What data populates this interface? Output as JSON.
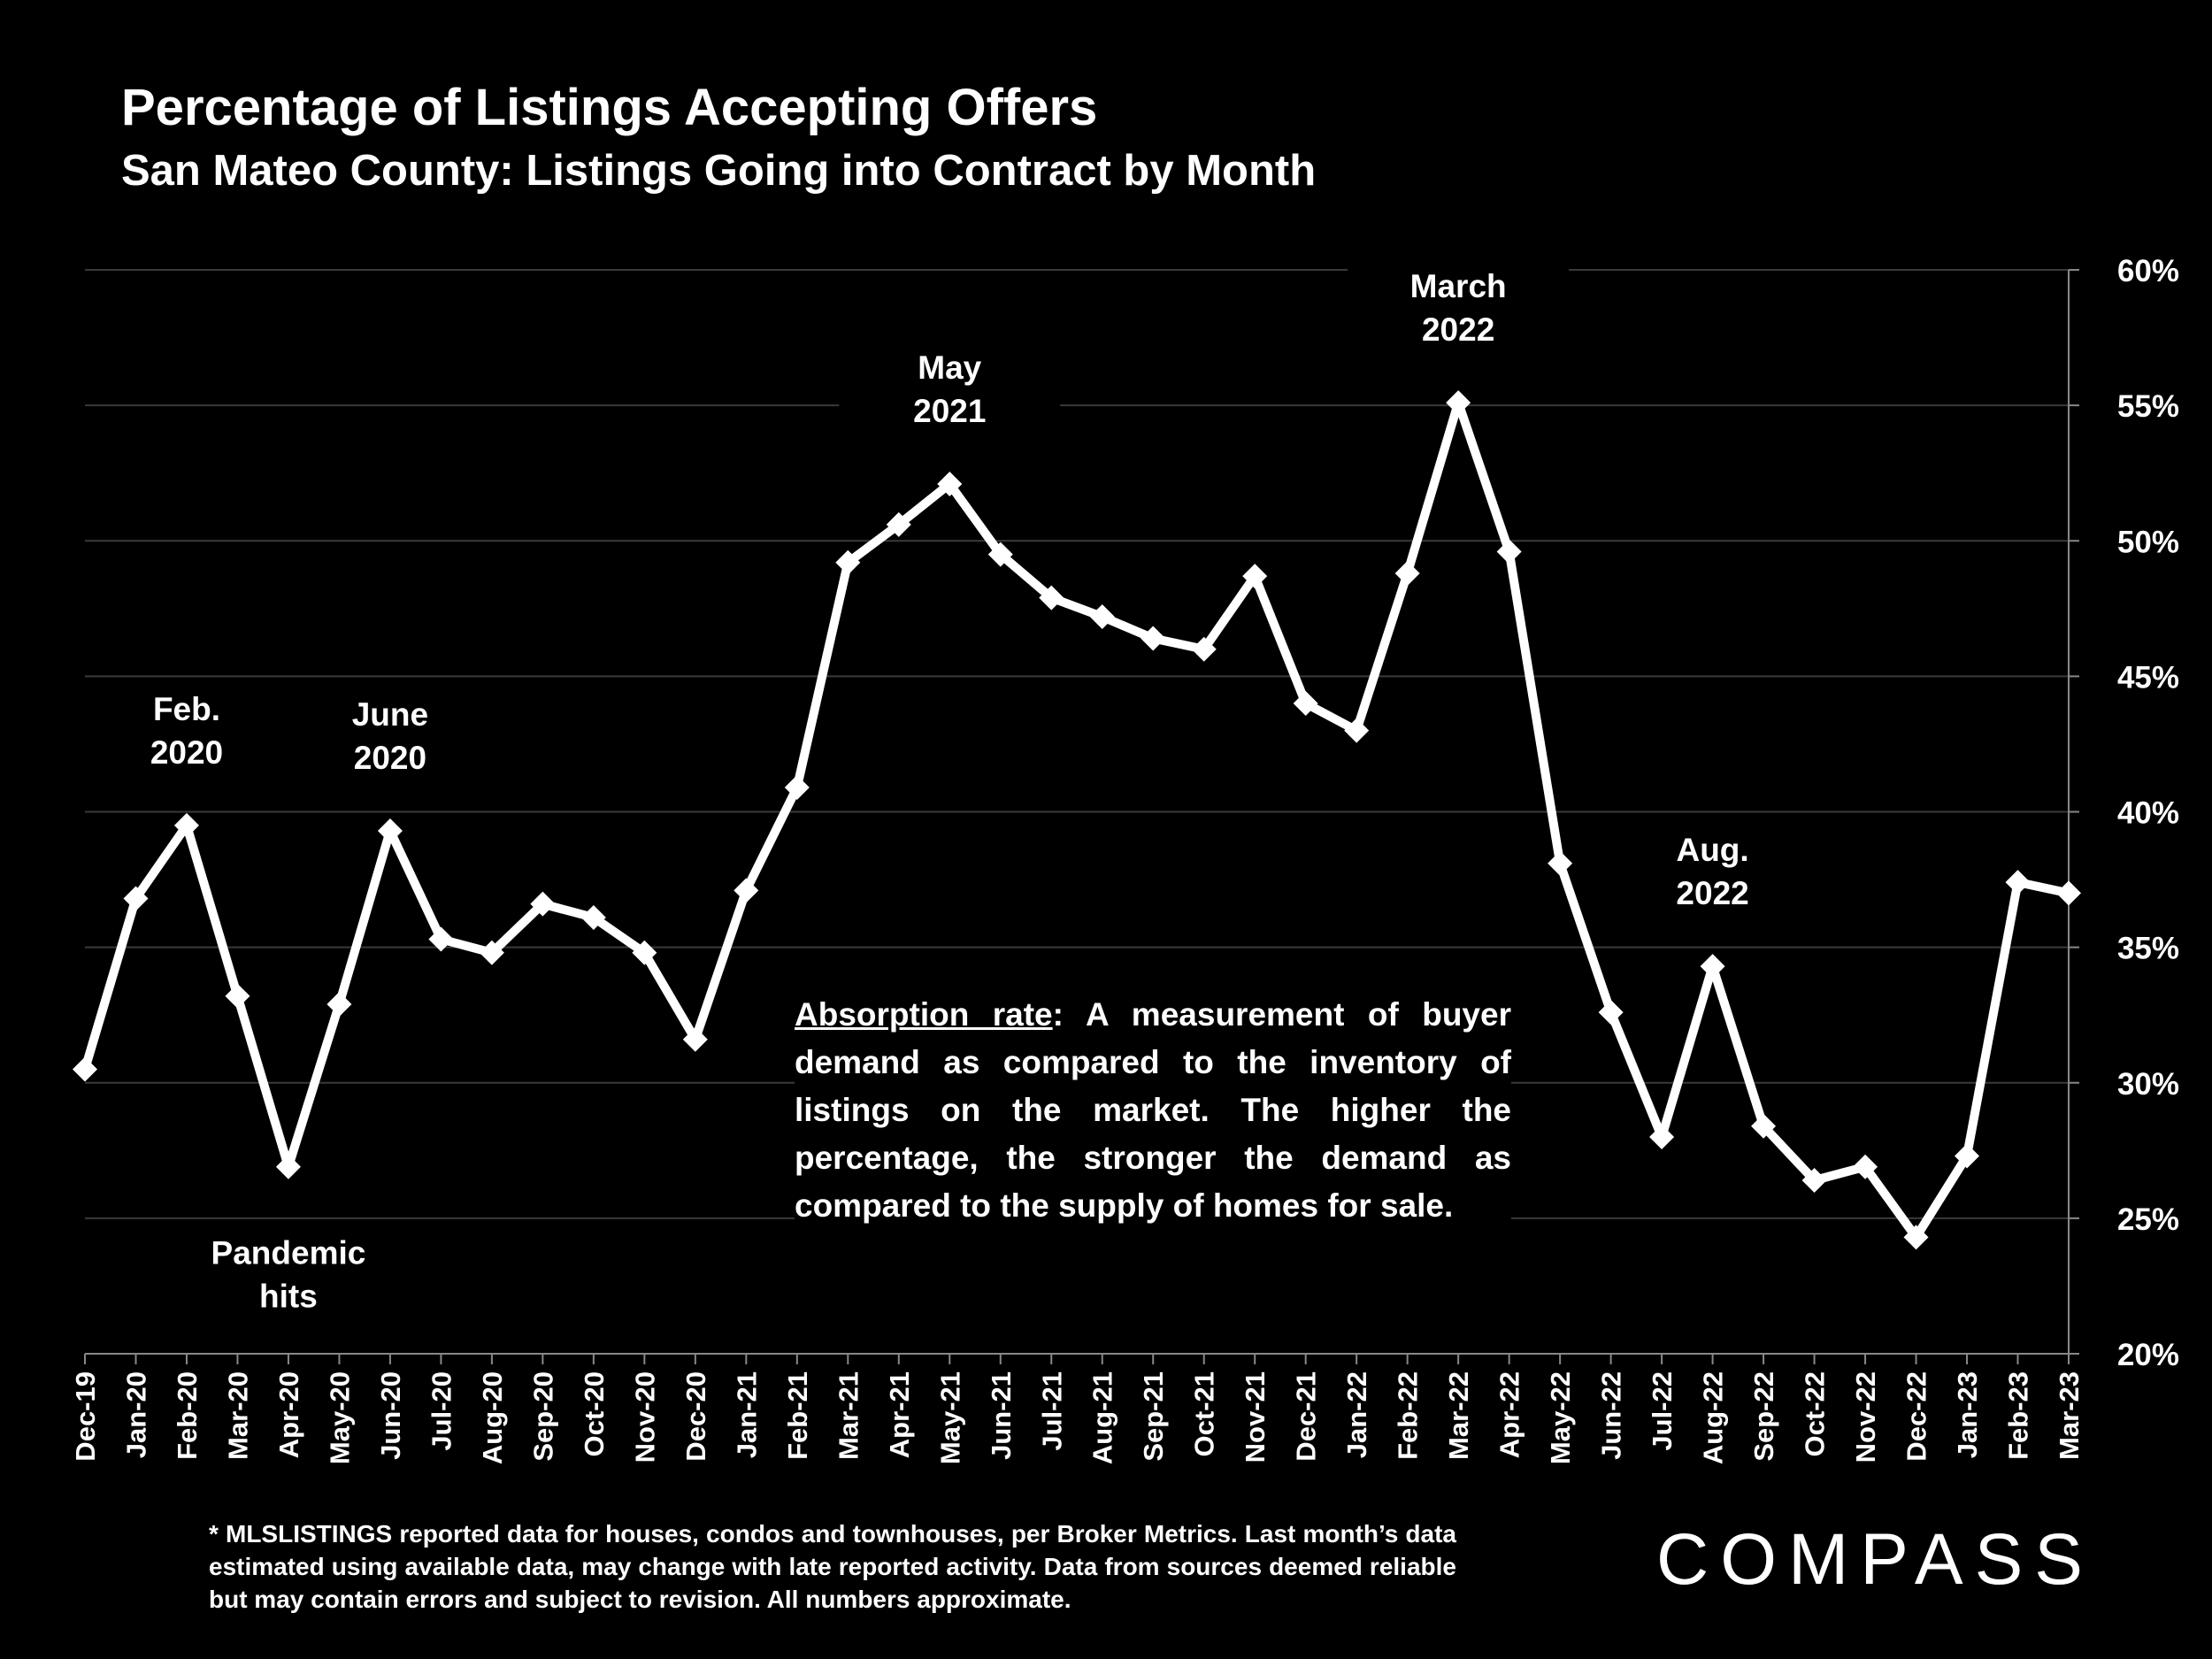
{
  "chart_data": {
    "type": "line",
    "title": "Percentage of Listings Accepting Offers",
    "subtitle": "San Mateo County: Listings Going into Contract by Month",
    "x": [
      "Dec-19",
      "Jan-20",
      "Feb-20",
      "Mar-20",
      "Apr-20",
      "May-20",
      "Jun-20",
      "Jul-20",
      "Aug-20",
      "Sep-20",
      "Oct-20",
      "Nov-20",
      "Dec-20",
      "Jan-21",
      "Feb-21",
      "Mar-21",
      "Apr-21",
      "May-21",
      "Jun-21",
      "Jul-21",
      "Aug-21",
      "Sep-21",
      "Oct-21",
      "Nov-21",
      "Dec-21",
      "Jan-22",
      "Feb-22",
      "Mar-22",
      "Apr-22",
      "May-22",
      "Jun-22",
      "Jul-22",
      "Aug-22",
      "Sep-22",
      "Oct-22",
      "Nov-22",
      "Dec-22",
      "Jan-23",
      "Feb-23",
      "Mar-23"
    ],
    "series": [
      {
        "values": [
          30.5,
          36.8,
          39.5,
          33.2,
          26.9,
          32.9,
          39.3,
          35.3,
          34.8,
          36.6,
          36.1,
          34.8,
          31.6,
          37.1,
          40.9,
          49.2,
          50.6,
          52.1,
          49.5,
          47.9,
          47.2,
          46.4,
          46.0,
          48.7,
          44.0,
          43.0,
          48.8,
          55.1,
          49.6,
          38.1,
          32.6,
          28.0,
          34.3,
          28.4,
          26.4,
          26.9,
          24.3,
          27.3,
          37.4,
          37.0
        ],
        "color": "#ffffff"
      }
    ],
    "yticks": [
      "60%",
      "55%",
      "50%",
      "45%",
      "40%",
      "35%",
      "30%",
      "25%",
      "20%"
    ],
    "ylim": [
      20,
      60
    ],
    "y_axis_position": "right",
    "grid": true,
    "annotations": [
      {
        "text": [
          "Feb.",
          "2020"
        ],
        "x": "Feb-20"
      },
      {
        "text": [
          "June",
          "2020"
        ],
        "x": "Jun-20"
      },
      {
        "text": [
          "May",
          "2021"
        ],
        "x": "May-21"
      },
      {
        "text": [
          "March",
          "2022"
        ],
        "x": "Mar-22"
      },
      {
        "text": [
          "Aug.",
          "2022"
        ],
        "x": "Aug-22"
      },
      {
        "text": [
          "Pandemic",
          "hits"
        ],
        "x": "Apr-20"
      }
    ]
  },
  "explanation": {
    "term": "Absorption rate",
    "text": ":  A measurement of buyer demand as compared to the inventory of listings on the market. The higher the percentage, the stronger the demand as compared to the supply of homes for sale."
  },
  "footnote": "* MLSLISTINGS reported data for houses, condos and townhouses, per Broker Metrics. Last month’s data estimated using available data, may change with late reported activity. Data from sources deemed reliable but may contain errors and subject to revision. All numbers approximate.",
  "logo": "COMPASS",
  "colors": {
    "background": "#000000",
    "line": "#ffffff",
    "grid": "#3a3a3a"
  }
}
